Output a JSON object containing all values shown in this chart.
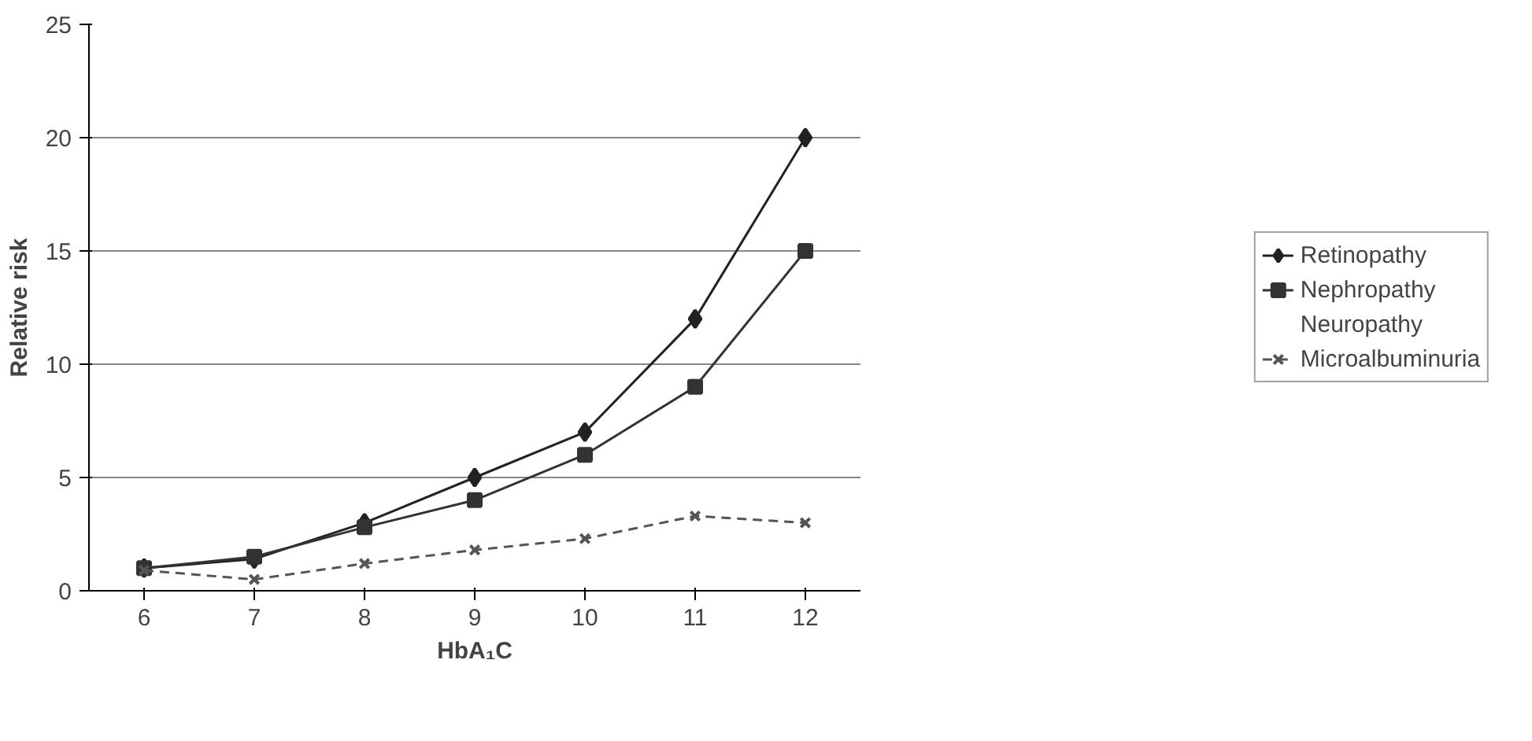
{
  "chart_data": {
    "type": "line",
    "xlabel": "HbA₁C",
    "ylabel": "Relative risk",
    "categories": [
      "6",
      "7",
      "8",
      "9",
      "10",
      "11",
      "12"
    ],
    "ylim": [
      0,
      25
    ],
    "yticks": [
      0,
      5,
      10,
      15,
      20,
      25
    ],
    "grid": "y",
    "legend": "right",
    "series": [
      {
        "name": "Retinopathy",
        "color": "#222222",
        "marker": "diamond",
        "line_style": "solid",
        "values": [
          1,
          1.4,
          3,
          5,
          7,
          12,
          20
        ]
      },
      {
        "name": "Nephropathy",
        "color": "#333333",
        "marker": "square",
        "line_style": "solid",
        "values": [
          1,
          1.5,
          2.8,
          4,
          6,
          9,
          15
        ]
      },
      {
        "name": "Neuropathy",
        "marker": "none",
        "line_style": "solid",
        "values": [
          null,
          null,
          null,
          null,
          null,
          null,
          null
        ]
      },
      {
        "name": "Microalbuminuria",
        "color": "#555555",
        "marker": "cross",
        "line_style": "dashed",
        "values": [
          0.9,
          0.5,
          1.2,
          1.8,
          2.3,
          3.3,
          3.0
        ]
      }
    ]
  }
}
